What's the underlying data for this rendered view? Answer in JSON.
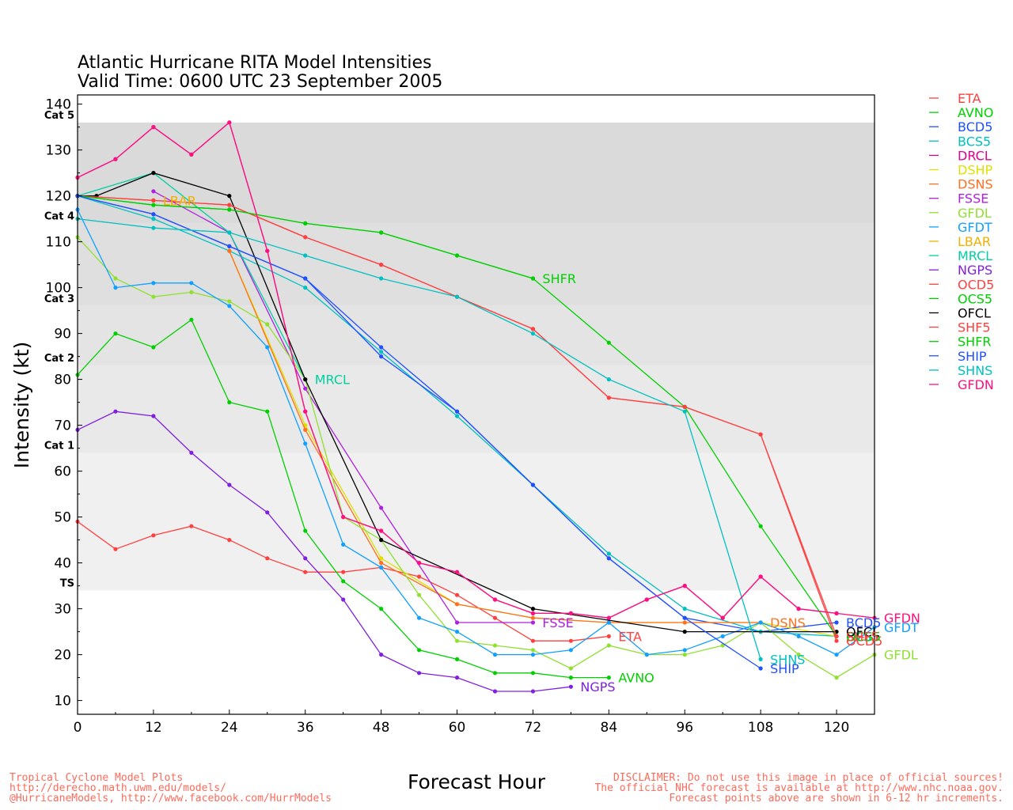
{
  "chart_data": {
    "type": "line",
    "title": "Atlantic Hurricane RITA Model Intensities",
    "subtitle": "Valid Time: 0600 UTC 23 September 2005",
    "xlabel": "Forecast Hour",
    "ylabel": "Intensity (kt)",
    "xlim": [
      0,
      126
    ],
    "ylim": [
      7,
      142
    ],
    "xticks": [
      "0",
      "12",
      "24",
      "36",
      "48",
      "60",
      "72",
      "84",
      "96",
      "108",
      "120"
    ],
    "yticks": [
      "10",
      "20",
      "30",
      "40",
      "50",
      "60",
      "70",
      "80",
      "90",
      "100",
      "110",
      "120",
      "130",
      "140"
    ],
    "legend_position": "right",
    "bands": [
      {
        "label": "TS",
        "from": 34,
        "to": 64,
        "color": "#f0f0f0"
      },
      {
        "label": "Cat 1",
        "from": 64,
        "to": 83,
        "color": "#e9e9e9"
      },
      {
        "label": "Cat 2",
        "from": 83,
        "to": 96,
        "color": "#e4e4e4"
      },
      {
        "label": "Cat 3",
        "from": 96,
        "to": 114,
        "color": "#dfdfdf"
      },
      {
        "label": "Cat 4",
        "from": 114,
        "to": 136,
        "color": "#dadada"
      },
      {
        "label": "Cat 5",
        "from": 136,
        "to": 142,
        "color": "#ffffff"
      }
    ],
    "series": [
      {
        "name": "ETA",
        "color": "#ff4040",
        "x": [
          0,
          6,
          12,
          18,
          24,
          30,
          36,
          42,
          48,
          54,
          60,
          66,
          72,
          78,
          84
        ],
        "y": [
          49,
          43,
          46,
          48,
          45,
          41,
          38,
          38,
          39,
          37,
          33,
          28,
          23,
          23,
          24
        ],
        "end_label": "ETA"
      },
      {
        "name": "AVNO",
        "color": "#00d000",
        "x": [
          0,
          6,
          12,
          18,
          24,
          30,
          36,
          42,
          48,
          54,
          60,
          66,
          72,
          78,
          84
        ],
        "y": [
          81,
          90,
          87,
          93,
          75,
          73,
          47,
          36,
          30,
          21,
          19,
          16,
          16,
          15,
          15
        ],
        "end_label": "AVNO"
      },
      {
        "name": "BCD5",
        "color": "#2050ff",
        "x": [
          0,
          12,
          24,
          36,
          48,
          60,
          72,
          84,
          96,
          108,
          120
        ],
        "y": [
          120,
          116,
          109,
          102,
          87,
          73,
          57,
          41,
          28,
          25,
          27
        ],
        "end_label": "BCD5"
      },
      {
        "name": "BCS5",
        "color": "#00c0c0",
        "x": [
          0,
          12,
          24,
          36,
          48,
          60,
          72,
          84,
          96,
          108,
          120
        ],
        "y": [
          120,
          115,
          108,
          100,
          86,
          72,
          57,
          42,
          30,
          25,
          24
        ],
        "end_label": "BCS5"
      },
      {
        "name": "DRCL",
        "color": "#e00090",
        "x": [
          0,
          6,
          12,
          18,
          24,
          30,
          36,
          42,
          48,
          54,
          60,
          66,
          72,
          78,
          84,
          90,
          96,
          102,
          108,
          114,
          120
        ],
        "y": [
          124,
          128,
          135,
          129,
          136,
          108,
          73,
          50,
          47,
          40,
          38,
          32,
          29,
          29,
          28,
          32,
          35,
          28,
          37,
          30,
          29
        ],
        "end_label": ""
      },
      {
        "name": "DSHP",
        "color": "#e0e000",
        "x": [
          24,
          36,
          48,
          60,
          72,
          84,
          96,
          108,
          120
        ],
        "y": [
          108,
          70,
          41,
          31,
          28,
          27,
          27,
          27,
          24
        ],
        "end_label": ""
      },
      {
        "name": "DSNS",
        "color": "#ff7020",
        "x": [
          24,
          36,
          48,
          60,
          72,
          84,
          96,
          108
        ],
        "y": [
          108,
          69,
          40,
          31,
          28,
          27,
          27,
          27
        ],
        "end_label": "DSNS"
      },
      {
        "name": "FSSE",
        "color": "#b020e0",
        "x": [
          12,
          24,
          36,
          48,
          60,
          72
        ],
        "y": [
          121,
          112,
          78,
          52,
          27,
          27
        ],
        "end_label": "FSSE"
      },
      {
        "name": "GFDL",
        "color": "#90e030",
        "x": [
          0,
          6,
          12,
          18,
          24,
          30,
          36,
          42,
          48,
          54,
          60,
          66,
          72,
          78,
          84,
          90,
          96,
          102,
          108,
          114,
          120,
          126
        ],
        "y": [
          111,
          102,
          98,
          99,
          97,
          92,
          80,
          50,
          45,
          33,
          23,
          22,
          21,
          17,
          22,
          20,
          20,
          22,
          27,
          20,
          15,
          20
        ],
        "end_label": "GFDL"
      },
      {
        "name": "GFDT",
        "color": "#10a0ff",
        "x": [
          0,
          6,
          12,
          18,
          24,
          30,
          36,
          42,
          48,
          54,
          60,
          66,
          72,
          78,
          84,
          90,
          96,
          102,
          108,
          114,
          120,
          126
        ],
        "y": [
          117,
          100,
          101,
          101,
          96,
          87,
          66,
          44,
          39,
          28,
          25,
          20,
          20,
          21,
          27,
          20,
          21,
          24,
          27,
          24,
          20,
          26
        ],
        "end_label": "GFDT"
      },
      {
        "name": "LBAR",
        "color": "#f0b000",
        "x": [
          0,
          12
        ],
        "y": [
          120,
          119
        ],
        "end_label": "LBAR"
      },
      {
        "name": "MRCL",
        "color": "#00d0a0",
        "x": [
          0,
          12,
          24,
          36
        ],
        "y": [
          120,
          125,
          112,
          80
        ],
        "end_label": "MRCL"
      },
      {
        "name": "NGPS",
        "color": "#8020e0",
        "x": [
          0,
          6,
          12,
          18,
          24,
          30,
          36,
          42,
          48,
          54,
          60,
          66,
          72,
          78
        ],
        "y": [
          69,
          73,
          72,
          64,
          57,
          51,
          41,
          32,
          20,
          16,
          15,
          12,
          12,
          13
        ],
        "end_label": "NGPS"
      },
      {
        "name": "OCD5",
        "color": "#ff4040",
        "x": [
          0,
          12,
          24,
          36,
          48,
          60,
          72,
          84,
          96,
          108,
          120
        ],
        "y": [
          120,
          119,
          118,
          111,
          105,
          98,
          91,
          76,
          74,
          68,
          23
        ],
        "end_label": "OCD5"
      },
      {
        "name": "OCS5",
        "color": "#00d000",
        "x": [
          0,
          12,
          24,
          36,
          48,
          60,
          72,
          84,
          96,
          108,
          120
        ],
        "y": [
          120,
          118,
          117,
          114,
          112,
          107,
          102,
          88,
          74,
          48,
          24
        ],
        "end_label": "OCS5"
      },
      {
        "name": "OFCL",
        "color": "#000000",
        "x": [
          0,
          3,
          12,
          24,
          36,
          48,
          72,
          96,
          120
        ],
        "y": [
          120,
          120,
          125,
          120,
          80,
          45,
          30,
          25,
          25
        ],
        "end_label": "OFCL"
      },
      {
        "name": "SHF5",
        "color": "#ff4040",
        "x": [
          0,
          12,
          24,
          36,
          48,
          60,
          72,
          84,
          96,
          108,
          120
        ],
        "y": [
          120,
          119,
          118,
          111,
          105,
          98,
          91,
          76,
          74,
          68,
          24
        ],
        "end_label": "SHF5"
      },
      {
        "name": "SHFR",
        "color": "#00d000",
        "x": [
          0,
          12,
          24,
          36,
          48,
          60,
          72
        ],
        "y": [
          120,
          118,
          117,
          114,
          112,
          107,
          102
        ],
        "end_label": "SHFR"
      },
      {
        "name": "SHIP",
        "color": "#2050ff",
        "x": [
          0,
          12,
          24,
          36,
          48,
          60,
          72,
          84,
          96,
          108
        ],
        "y": [
          120,
          116,
          109,
          102,
          85,
          73,
          57,
          41,
          28,
          17
        ],
        "end_label": "SHIP"
      },
      {
        "name": "SHNS",
        "color": "#00c0c0",
        "x": [
          0,
          12,
          24,
          36,
          48,
          60,
          72,
          84,
          96,
          108
        ],
        "y": [
          115,
          113,
          112,
          107,
          102,
          98,
          90,
          80,
          73,
          19
        ],
        "end_label": "SHNS"
      },
      {
        "name": "GFDN",
        "color": "#ff1080",
        "x": [
          0,
          6,
          12,
          18,
          24,
          30,
          36,
          42,
          48,
          54,
          60,
          66,
          72,
          78,
          84,
          90,
          96,
          102,
          108,
          114,
          120,
          126
        ],
        "y": [
          124,
          128,
          135,
          129,
          136,
          108,
          73,
          50,
          47,
          40,
          38,
          32,
          29,
          29,
          28,
          32,
          35,
          28,
          37,
          30,
          29,
          28
        ],
        "end_label": "GFDN"
      }
    ]
  },
  "footer": {
    "left": [
      "Tropical Cyclone Model Plots",
      "http://derecho.math.uwm.edu/models/",
      "@HurricaneModels, http://www.facebook.com/HurrModels"
    ],
    "right": [
      "DISCLAIMER: Do not use this image in place of official sources!",
      "The official NHC forecast is available at http://www.nhc.noaa.gov.",
      "Forecast points above are shown in 6-12 hr increments."
    ]
  }
}
